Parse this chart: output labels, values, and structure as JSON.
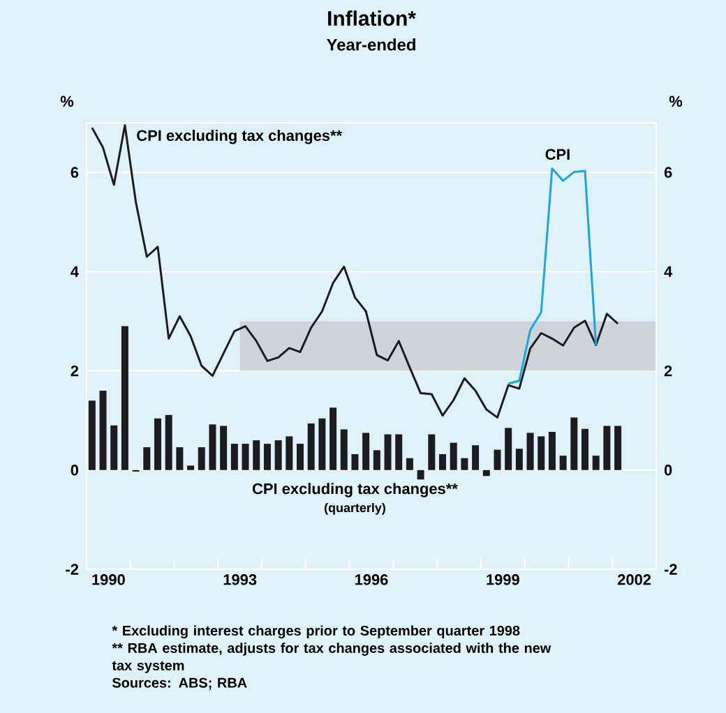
{
  "chart_data": {
    "type": "line",
    "title": "Inflation*",
    "subtitle": "Year-ended",
    "ylabel": "%",
    "y2label": "%",
    "xlim": [
      1990,
      2003
    ],
    "xticks": [
      {
        "value": 1990,
        "label": null
      },
      {
        "value": 1990.5,
        "label": "1990"
      },
      {
        "value": 1991,
        "label": null
      },
      {
        "value": 1992,
        "label": null
      },
      {
        "value": 1993,
        "label": null
      },
      {
        "value": 1993.5,
        "label": "1993"
      },
      {
        "value": 1994,
        "label": null
      },
      {
        "value": 1995,
        "label": null
      },
      {
        "value": 1996,
        "label": null
      },
      {
        "value": 1996.5,
        "label": "1996"
      },
      {
        "value": 1997,
        "label": null
      },
      {
        "value": 1998,
        "label": null
      },
      {
        "value": 1999,
        "label": null
      },
      {
        "value": 1999.5,
        "label": "1999"
      },
      {
        "value": 2000,
        "label": null
      },
      {
        "value": 2001,
        "label": null
      },
      {
        "value": 2002,
        "label": null
      },
      {
        "value": 2002.5,
        "label": "2002"
      },
      {
        "value": 2003,
        "label": null
      }
    ],
    "ylim": [
      -2,
      7
    ],
    "yticks": [
      -2,
      0,
      2,
      4,
      6
    ],
    "y2lim": [
      -2,
      7
    ],
    "y2ticks": [
      -2,
      0,
      2,
      4,
      6
    ],
    "grid": "y",
    "series": [
      {
        "type": "area",
        "color": "#cdd4da",
        "x": [
          1993.5,
          2003
        ],
        "values": [
          null,
          null
        ],
        "lower": [
          2,
          2
        ],
        "upper": [
          3,
          3
        ]
      },
      {
        "type": "bar",
        "name": "CPI excluding tax changes**",
        "color": "#1b1c20",
        "x": [
          1990.125,
          1990.375,
          1990.625,
          1990.875,
          1991.125,
          1991.375,
          1991.625,
          1991.875,
          1992.125,
          1992.375,
          1992.625,
          1992.875,
          1993.125,
          1993.375,
          1993.625,
          1993.875,
          1994.125,
          1994.375,
          1994.625,
          1994.875,
          1995.125,
          1995.375,
          1995.625,
          1995.875,
          1996.125,
          1996.375,
          1996.625,
          1996.875,
          1997.125,
          1997.375,
          1997.625,
          1997.875,
          1998.125,
          1998.375,
          1998.625,
          1998.875,
          1999.125,
          1999.375,
          1999.625,
          1999.875,
          2000.125,
          2000.375,
          2000.625,
          2000.875,
          2001.125,
          2001.375,
          2001.625,
          2001.875,
          2002.125
        ],
        "values": [
          1.4,
          1.6,
          0.9,
          2.9,
          -0.03,
          0.46,
          1.04,
          1.11,
          0.46,
          0.09,
          0.46,
          0.92,
          0.89,
          0.53,
          0.53,
          0.6,
          0.53,
          0.6,
          0.68,
          0.53,
          0.94,
          1.04,
          1.26,
          0.82,
          0.32,
          0.75,
          0.4,
          0.72,
          0.72,
          0.24,
          -0.19,
          0.72,
          0.32,
          0.55,
          0.24,
          0.5,
          -0.12,
          0.41,
          0.85,
          0.43,
          0.75,
          0.68,
          0.77,
          0.29,
          1.06,
          0.83,
          0.29,
          0.89,
          0.89
        ]
      },
      {
        "name": "CPI excluding tax changes**",
        "color": "#1b1c20",
        "x": [
          1990.125,
          1990.375,
          1990.625,
          1990.875,
          1991.125,
          1991.375,
          1991.625,
          1991.875,
          1992.125,
          1992.375,
          1992.625,
          1992.875,
          1993.125,
          1993.375,
          1993.625,
          1993.875,
          1994.125,
          1994.375,
          1994.625,
          1994.875,
          1995.125,
          1995.375,
          1995.625,
          1995.875,
          1996.125,
          1996.375,
          1996.625,
          1996.875,
          1997.125,
          1997.375,
          1997.625,
          1997.875,
          1998.125,
          1998.375,
          1998.625,
          1998.875,
          1999.125,
          1999.375,
          1999.625,
          1999.875,
          2000.125,
          2000.375,
          2000.625,
          2000.875,
          2001.125,
          2001.375,
          2001.625,
          2001.875,
          2002.125
        ],
        "values": [
          6.9,
          6.5,
          5.75,
          6.95,
          5.4,
          4.3,
          4.5,
          2.65,
          3.1,
          2.7,
          2.1,
          1.9,
          2.35,
          2.8,
          2.9,
          2.6,
          2.2,
          2.27,
          2.46,
          2.38,
          2.87,
          3.2,
          3.77,
          4.1,
          3.48,
          3.2,
          2.32,
          2.21,
          2.6,
          2.07,
          1.55,
          1.53,
          1.1,
          1.41,
          1.85,
          1.6,
          1.22,
          1.06,
          1.71,
          1.64,
          2.45,
          2.76,
          2.65,
          2.51,
          2.87,
          3.01,
          2.52,
          3.15,
          2.95
        ]
      },
      {
        "name": "CPI",
        "color": "#1aa7e0",
        "x": [
          1999.625,
          1999.875,
          2000.125,
          2000.375,
          2000.625,
          2000.875,
          2001.125,
          2001.375,
          2001.625
        ],
        "values": [
          1.74,
          1.8,
          2.82,
          3.18,
          6.08,
          5.83,
          6.01,
          6.03,
          2.52
        ]
      }
    ],
    "annotations": [
      "(quarterly)",
      "*  Excluding interest charges prior to September quarter 1998",
      "**  RBA estimate, adjusts for tax changes associated with the new tax system",
      "Sources: ABS; RBA"
    ]
  }
}
